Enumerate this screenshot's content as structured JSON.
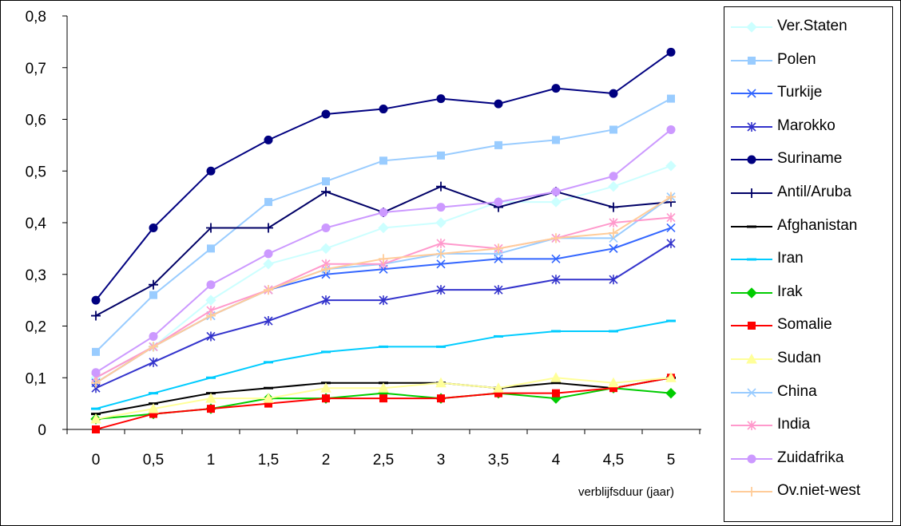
{
  "chart_data": {
    "type": "line",
    "x": [
      "0",
      "0,5",
      "1",
      "1,5",
      "2",
      "2,5",
      "3",
      "3,5",
      "4",
      "4,5",
      "5"
    ],
    "xlabel": "verblijfsduur (jaar)",
    "ylabel": "",
    "ylim": [
      0,
      0.8
    ],
    "yticks": [
      "0",
      "0,1",
      "0,2",
      "0,3",
      "0,4",
      "0,5",
      "0,6",
      "0,7",
      "0,8"
    ],
    "grid": false,
    "legend_position": "right",
    "series": [
      {
        "name": "Ver.Staten",
        "color": "#ccffff",
        "marker": "diamond",
        "values": [
          0.1,
          0.16,
          0.25,
          0.32,
          0.35,
          0.39,
          0.4,
          0.44,
          0.44,
          0.47,
          0.51
        ]
      },
      {
        "name": "Polen",
        "color": "#99ccff",
        "marker": "square",
        "values": [
          0.15,
          0.26,
          0.35,
          0.44,
          0.48,
          0.52,
          0.53,
          0.55,
          0.56,
          0.58,
          0.64
        ]
      },
      {
        "name": "Turkije",
        "color": "#3366ff",
        "marker": "x",
        "values": [
          0.09,
          0.16,
          0.22,
          0.27,
          0.3,
          0.31,
          0.32,
          0.33,
          0.33,
          0.35,
          0.39
        ]
      },
      {
        "name": "Marokko",
        "color": "#3333cc",
        "marker": "star",
        "values": [
          0.08,
          0.13,
          0.18,
          0.21,
          0.25,
          0.25,
          0.27,
          0.27,
          0.29,
          0.29,
          0.36
        ]
      },
      {
        "name": "Suriname",
        "color": "#000080",
        "marker": "circle",
        "values": [
          0.25,
          0.39,
          0.5,
          0.56,
          0.61,
          0.62,
          0.64,
          0.63,
          0.66,
          0.65,
          0.73
        ]
      },
      {
        "name": "Antil/Aruba",
        "color": "#000066",
        "marker": "plus",
        "values": [
          0.22,
          0.28,
          0.39,
          0.39,
          0.46,
          0.42,
          0.47,
          0.43,
          0.46,
          0.43,
          0.44
        ]
      },
      {
        "name": "Afghanistan",
        "color": "#000000",
        "marker": "dash",
        "values": [
          0.03,
          0.05,
          0.07,
          0.08,
          0.09,
          0.09,
          0.09,
          0.08,
          0.09,
          0.08,
          0.1
        ]
      },
      {
        "name": "Iran",
        "color": "#00ccff",
        "marker": "dash",
        "values": [
          0.04,
          0.07,
          0.1,
          0.13,
          0.15,
          0.16,
          0.16,
          0.18,
          0.19,
          0.19,
          0.21
        ]
      },
      {
        "name": "Irak",
        "color": "#00cc00",
        "marker": "diamond",
        "values": [
          0.02,
          0.03,
          0.04,
          0.06,
          0.06,
          0.07,
          0.06,
          0.07,
          0.06,
          0.08,
          0.07
        ]
      },
      {
        "name": "Somalie",
        "color": "#ff0000",
        "marker": "square",
        "values": [
          0.0,
          0.03,
          0.04,
          0.05,
          0.06,
          0.06,
          0.06,
          0.07,
          0.07,
          0.08,
          0.1
        ]
      },
      {
        "name": "Sudan",
        "color": "#ffff99",
        "marker": "triangle",
        "values": [
          0.02,
          0.04,
          0.06,
          0.06,
          0.08,
          0.08,
          0.09,
          0.08,
          0.1,
          0.09,
          0.1
        ]
      },
      {
        "name": "China",
        "color": "#99ccff",
        "marker": "x",
        "values": [
          0.1,
          0.16,
          0.22,
          0.27,
          0.31,
          0.32,
          0.34,
          0.34,
          0.37,
          0.37,
          0.45
        ]
      },
      {
        "name": "India",
        "color": "#ff99cc",
        "marker": "star",
        "values": [
          0.1,
          0.16,
          0.23,
          0.27,
          0.32,
          0.32,
          0.36,
          0.35,
          0.37,
          0.4,
          0.41
        ]
      },
      {
        "name": "Zuidafrika",
        "color": "#cc99ff",
        "marker": "circle",
        "values": [
          0.11,
          0.18,
          0.28,
          0.34,
          0.39,
          0.42,
          0.43,
          0.44,
          0.46,
          0.49,
          0.58
        ]
      },
      {
        "name": "Ov.niet-west",
        "color": "#ffcc99",
        "marker": "plus",
        "values": [
          0.09,
          0.16,
          0.22,
          0.27,
          0.31,
          0.33,
          0.34,
          0.35,
          0.37,
          0.38,
          0.45
        ]
      }
    ]
  }
}
